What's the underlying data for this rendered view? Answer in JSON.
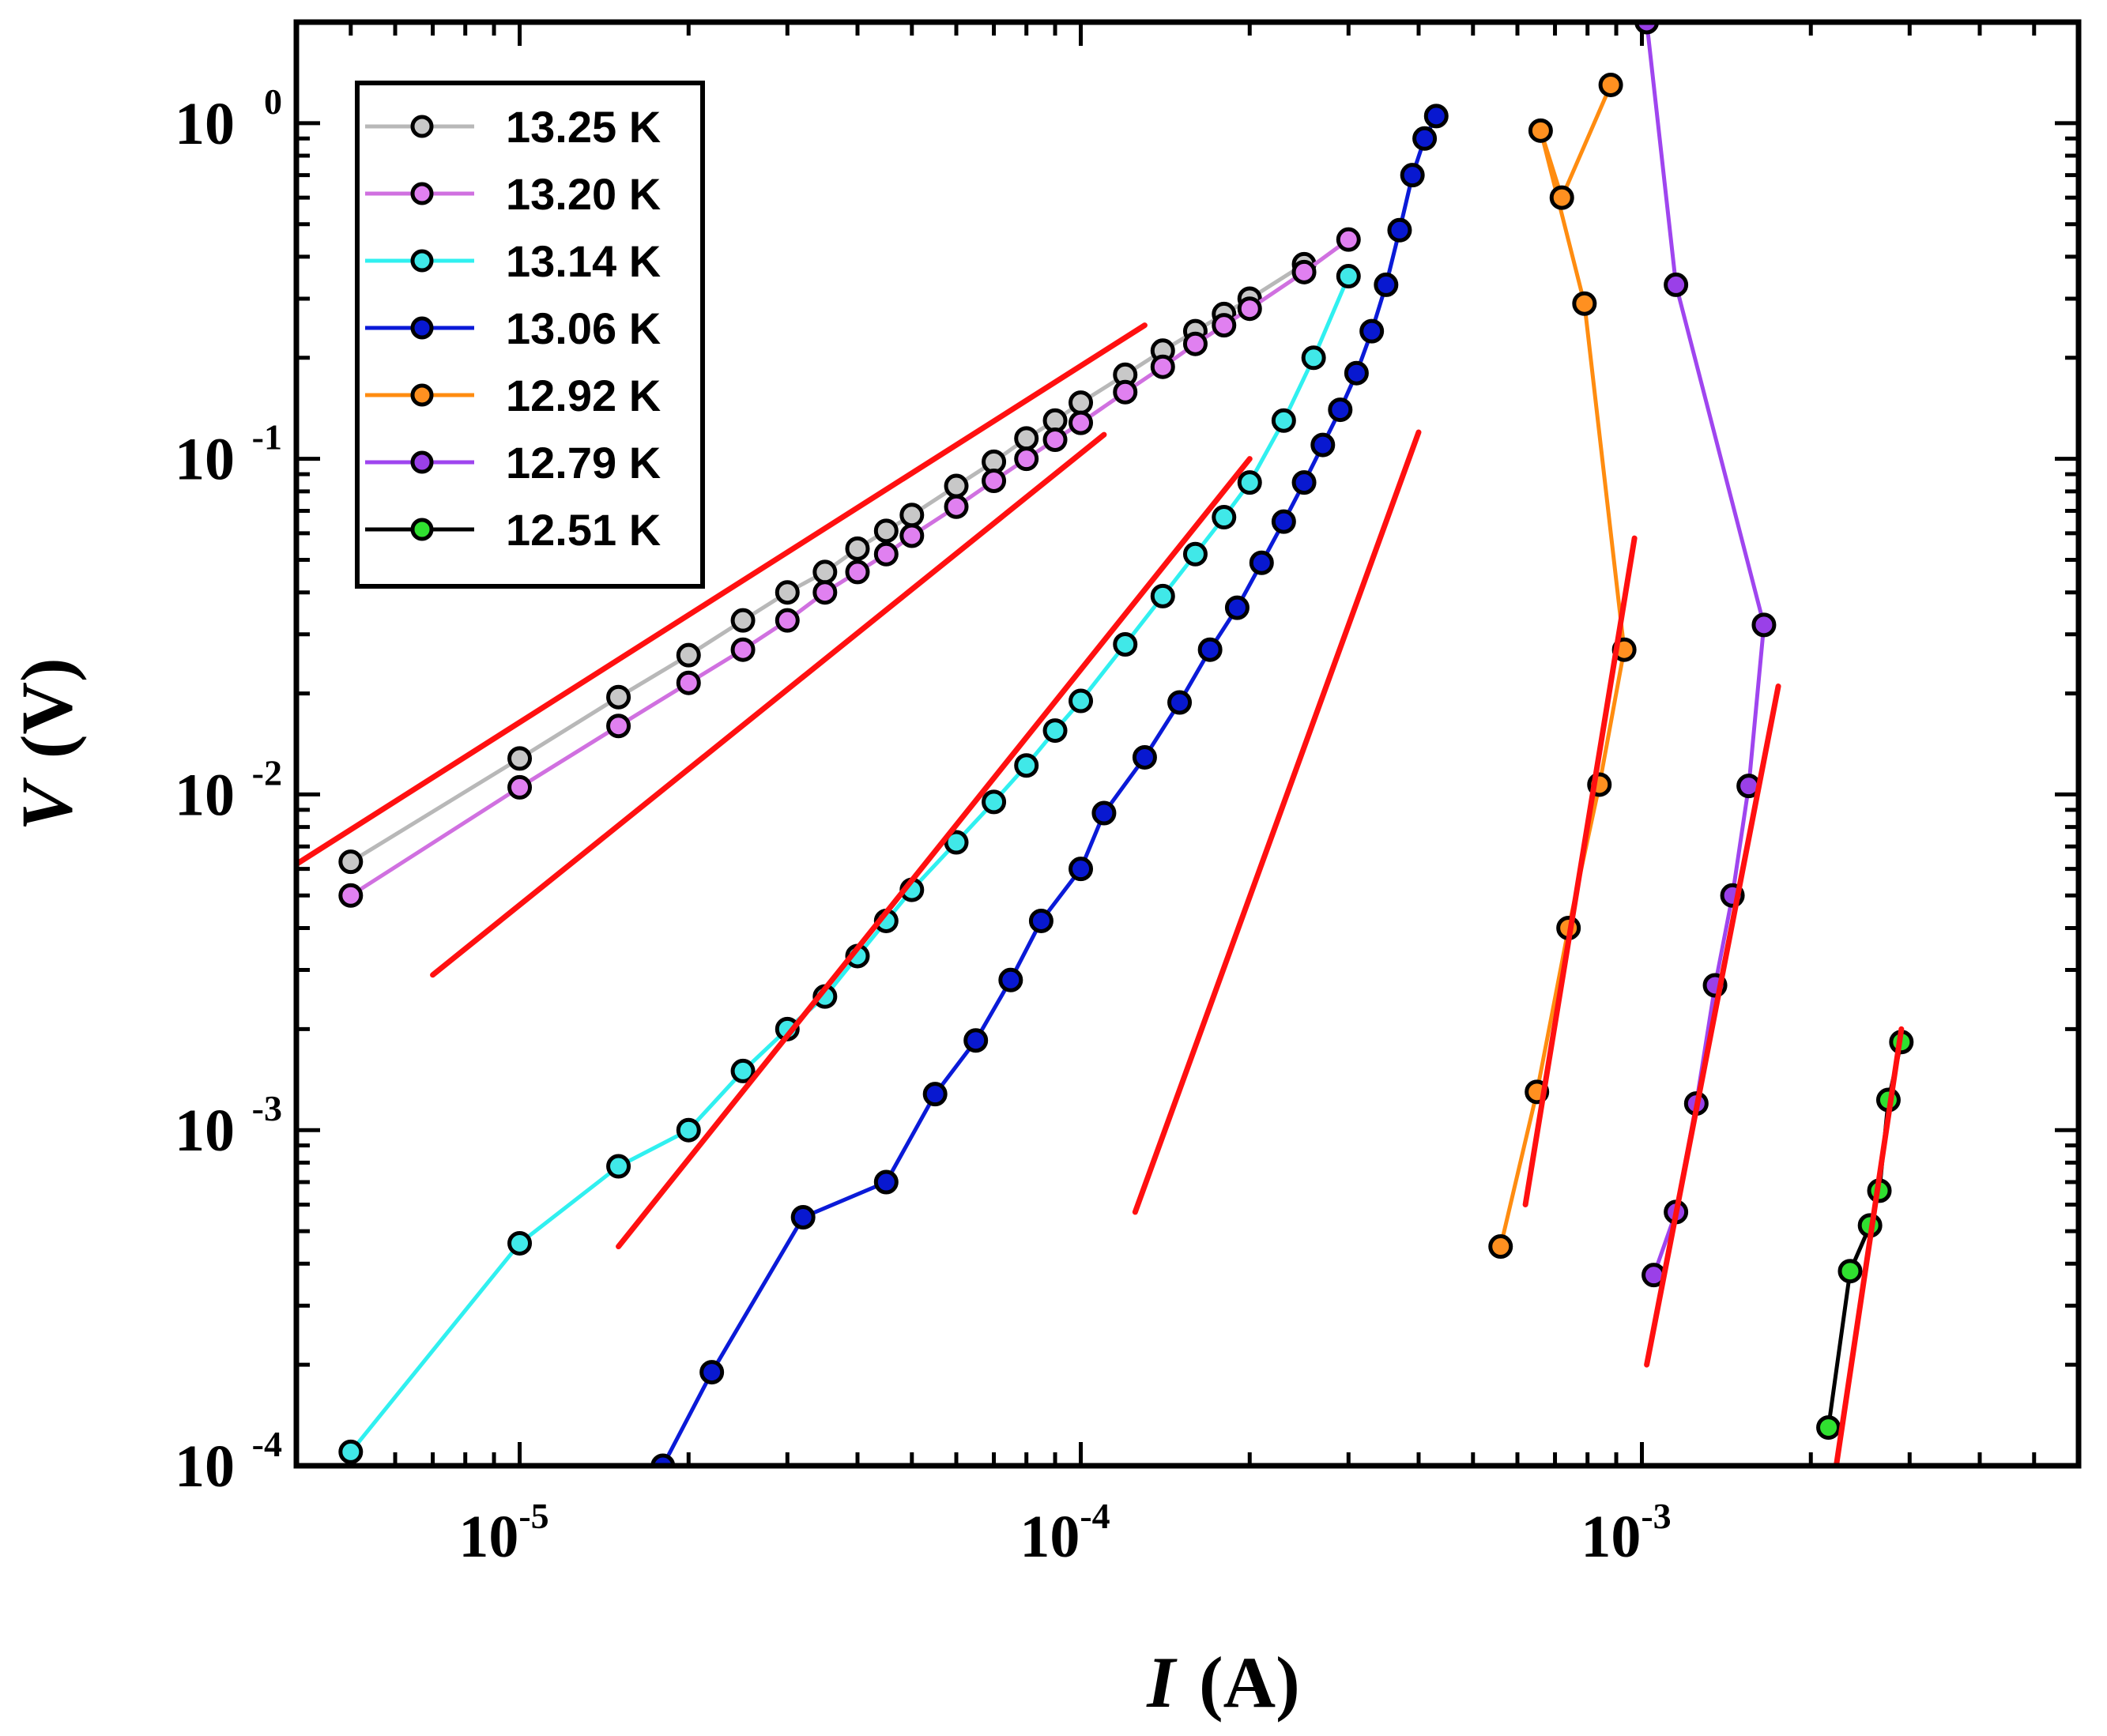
{
  "chart_data": {
    "type": "scatter",
    "title": "",
    "xlabel": {
      "symbol": "I",
      "unit": "(A)"
    },
    "ylabel": {
      "symbol": "V",
      "unit": "(V)"
    },
    "xscale": "log",
    "yscale": "log",
    "xlim": [
      4e-06,
      0.006
    ],
    "ylim": [
      0.0001,
      2.0
    ],
    "xticks": [
      {
        "value": 1e-05,
        "base": "10",
        "exp": "-5"
      },
      {
        "value": 0.0001,
        "base": "10",
        "exp": "-4"
      },
      {
        "value": 0.001,
        "base": "10",
        "exp": "-3"
      }
    ],
    "yticks": [
      {
        "value": 0.0001,
        "base": "10",
        "exp": "-4"
      },
      {
        "value": 0.001,
        "base": "10",
        "exp": "-3"
      },
      {
        "value": 0.01,
        "base": "10",
        "exp": "-2"
      },
      {
        "value": 0.1,
        "base": "10",
        "exp": "-1"
      },
      {
        "value": 1,
        "base": "10",
        "exp": "0"
      }
    ],
    "legend_position": "top-left",
    "series": [
      {
        "name": "13.25 K",
        "color": "#b8b8b8",
        "marker_color": "#c8c8c8",
        "x": [
          5e-06,
          1e-05,
          1.5e-05,
          2e-05,
          2.5e-05,
          3e-05,
          3.5e-05,
          4e-05,
          4.5e-05,
          5e-05,
          6e-05,
          7e-05,
          8e-05,
          9e-05,
          0.0001,
          0.00012,
          0.00014,
          0.00016,
          0.00018,
          0.0002,
          0.00025
        ],
        "y": [
          0.0063,
          0.0128,
          0.0195,
          0.026,
          0.033,
          0.04,
          0.046,
          0.054,
          0.061,
          0.068,
          0.083,
          0.098,
          0.115,
          0.13,
          0.147,
          0.178,
          0.21,
          0.24,
          0.27,
          0.3,
          0.38
        ]
      },
      {
        "name": "13.20 K",
        "color": "#d070e0",
        "marker_color": "#e080f0",
        "x": [
          5e-06,
          1e-05,
          1.5e-05,
          2e-05,
          2.5e-05,
          3e-05,
          3.5e-05,
          4e-05,
          4.5e-05,
          5e-05,
          6e-05,
          7e-05,
          8e-05,
          9e-05,
          0.0001,
          0.00012,
          0.00014,
          0.00016,
          0.00018,
          0.0002,
          0.00025,
          0.0003
        ],
        "y": [
          0.005,
          0.0105,
          0.016,
          0.0215,
          0.027,
          0.033,
          0.04,
          0.046,
          0.052,
          0.059,
          0.072,
          0.086,
          0.1,
          0.114,
          0.128,
          0.158,
          0.188,
          0.22,
          0.25,
          0.28,
          0.36,
          0.45
        ]
      },
      {
        "name": "13.14 K",
        "color": "#30f0f0",
        "marker_color": "#40e8e8",
        "x": [
          5e-06,
          1e-05,
          1.5e-05,
          2e-05,
          2.5e-05,
          3e-05,
          3.5e-05,
          4e-05,
          4.5e-05,
          5e-05,
          6e-05,
          7e-05,
          8e-05,
          9e-05,
          0.0001,
          0.00012,
          0.00014,
          0.00016,
          0.00018,
          0.0002,
          0.00023,
          0.00026,
          0.0003
        ],
        "y": [
          0.00011,
          0.00046,
          0.00078,
          0.001,
          0.0015,
          0.002,
          0.0025,
          0.0033,
          0.0042,
          0.0052,
          0.0072,
          0.0095,
          0.0122,
          0.0155,
          0.019,
          0.028,
          0.039,
          0.052,
          0.067,
          0.085,
          0.13,
          0.2,
          0.35
        ]
      },
      {
        "name": "13.06 K",
        "color": "#0a1ad8",
        "marker_color": "#0818d0",
        "x": [
          1.8e-05,
          2.2e-05,
          3.2e-05,
          4.5e-05,
          5.5e-05,
          6.5e-05,
          7.5e-05,
          8.5e-05,
          0.0001,
          0.00011,
          0.00013,
          0.00015,
          0.00017,
          0.00019,
          0.00021,
          0.00023,
          0.00025,
          0.00027,
          0.00029,
          0.00031,
          0.00033,
          0.00035,
          0.00037,
          0.00039,
          0.00041,
          0.00043
        ],
        "y": [
          0.0001,
          0.00019,
          0.00055,
          0.0007,
          0.00128,
          0.00185,
          0.0028,
          0.0042,
          0.006,
          0.0088,
          0.0129,
          0.0188,
          0.027,
          0.036,
          0.049,
          0.065,
          0.085,
          0.11,
          0.14,
          0.18,
          0.24,
          0.33,
          0.48,
          0.7,
          0.9,
          1.05
        ]
      },
      {
        "name": "12.92 K",
        "color": "#ff8c10",
        "marker_color": "#ff9020",
        "x": [
          0.00056,
          0.00065,
          0.00074,
          0.00084,
          0.00093,
          0.00079,
          0.00066,
          0.00072,
          0.00088
        ],
        "y": [
          0.00045,
          0.0013,
          0.004,
          0.0107,
          0.027,
          0.29,
          0.95,
          0.6,
          1.3
        ]
      },
      {
        "name": "12.79 K",
        "color": "#9f45ef",
        "marker_color": "#9a40e8",
        "x": [
          0.00105,
          0.00115,
          0.00125,
          0.00135,
          0.00145,
          0.00155,
          0.00165,
          0.00115,
          0.00102
        ],
        "y": [
          0.00037,
          0.00057,
          0.0012,
          0.0027,
          0.005,
          0.0106,
          0.032,
          0.33,
          2.0
        ]
      },
      {
        "name": "12.51 K",
        "color": "#000000",
        "marker_color": "#30e030",
        "x": [
          0.00215,
          0.00235,
          0.00255,
          0.00265,
          0.00275,
          0.0029
        ],
        "y": [
          0.00013,
          0.00038,
          0.00052,
          0.00066,
          0.00123,
          0.00183
        ]
      }
    ],
    "fit_lines": [
      {
        "x": [
          4e-06,
          0.00013
        ],
        "y": [
          0.0062,
          0.25
        ]
      },
      {
        "x": [
          7e-06,
          0.00011
        ],
        "y": [
          0.0029,
          0.118
        ]
      },
      {
        "x": [
          1.5e-05,
          0.0002
        ],
        "y": [
          0.00045,
          0.1
        ]
      },
      {
        "x": [
          0.000125,
          0.0004
        ],
        "y": [
          0.00057,
          0.12
        ]
      },
      {
        "x": [
          0.00062,
          0.00097
        ],
        "y": [
          0.0006,
          0.058
        ]
      },
      {
        "x": [
          0.00102,
          0.00175
        ],
        "y": [
          0.0002,
          0.021
        ]
      },
      {
        "x": [
          0.00222,
          0.0029
        ],
        "y": [
          0.0001,
          0.002
        ]
      }
    ]
  }
}
